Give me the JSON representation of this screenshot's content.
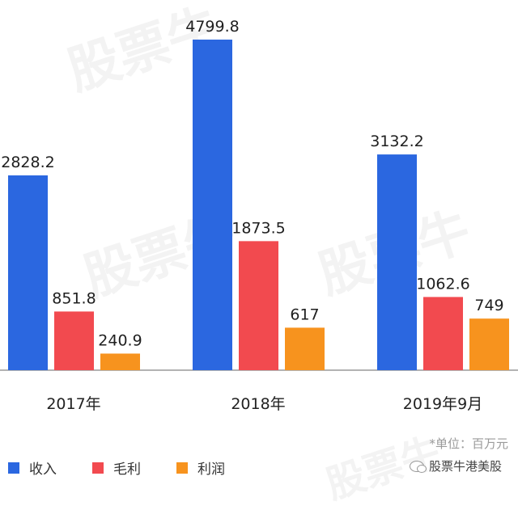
{
  "watermark": "股票牛",
  "colors": {
    "revenue": "#2b67e0",
    "gross": "#f24a4f",
    "profit": "#f7931e",
    "axis": "#9a9a9a"
  },
  "unit_note": "*单位：百万元",
  "brand": "股票牛港美股",
  "chart_data": {
    "type": "bar",
    "categories": [
      "2017年",
      "2018年",
      "2019年9月"
    ],
    "series": [
      {
        "name": "收入",
        "values": [
          2828.2,
          4799.8,
          3132.2
        ],
        "labels": [
          "2828.2",
          "4799.8",
          "3132.2"
        ]
      },
      {
        "name": "毛利",
        "values": [
          851.8,
          1873.5,
          1062.6
        ],
        "labels": [
          "851.8",
          "1873.5",
          "1062.6"
        ]
      },
      {
        "name": "利润",
        "values": [
          240.9,
          617,
          749
        ],
        "labels": [
          "240.9",
          "617",
          "749"
        ]
      }
    ],
    "ylim": [
      0,
      5000
    ],
    "grid": false,
    "legend_position": "bottom-left"
  }
}
